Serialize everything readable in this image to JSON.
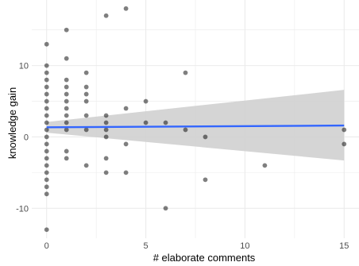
{
  "chart_data": {
    "type": "scatter",
    "xlabel": "# elaborate comments",
    "ylabel": "knowledge gain",
    "xlim": [
      -0.75,
      15.75
    ],
    "ylim": [
      -14.2,
      19.2
    ],
    "x_ticks": [
      0,
      5,
      10,
      15
    ],
    "y_ticks": [
      -10,
      0,
      10
    ],
    "grid": true,
    "legend": "none",
    "colors": {
      "points": "#000000",
      "fit_line": "#3366ff",
      "confidence_band": "#d0d0d0",
      "grid": "#ebebeb",
      "background": "#ffffff"
    },
    "points": [
      {
        "x": 0,
        "y": 13
      },
      {
        "x": 0,
        "y": 10
      },
      {
        "x": 0,
        "y": 9
      },
      {
        "x": 0,
        "y": 8
      },
      {
        "x": 0,
        "y": 7
      },
      {
        "x": 0,
        "y": 6
      },
      {
        "x": 0,
        "y": 5
      },
      {
        "x": 0,
        "y": 4
      },
      {
        "x": 0,
        "y": 3
      },
      {
        "x": 0,
        "y": 2
      },
      {
        "x": 0,
        "y": 1
      },
      {
        "x": 0,
        "y": 0
      },
      {
        "x": 0,
        "y": -1
      },
      {
        "x": 0,
        "y": -2
      },
      {
        "x": 0,
        "y": -3
      },
      {
        "x": 0,
        "y": -4
      },
      {
        "x": 0,
        "y": -5
      },
      {
        "x": 0,
        "y": -6
      },
      {
        "x": 0,
        "y": -7
      },
      {
        "x": 0,
        "y": -8
      },
      {
        "x": 0,
        "y": -13
      },
      {
        "x": 1,
        "y": 15
      },
      {
        "x": 1,
        "y": 11
      },
      {
        "x": 1,
        "y": 8
      },
      {
        "x": 1,
        "y": 7
      },
      {
        "x": 1,
        "y": 6
      },
      {
        "x": 1,
        "y": 5
      },
      {
        "x": 1,
        "y": 4
      },
      {
        "x": 1,
        "y": 3
      },
      {
        "x": 1,
        "y": 2
      },
      {
        "x": 1,
        "y": 1
      },
      {
        "x": 1,
        "y": -2
      },
      {
        "x": 1,
        "y": -3
      },
      {
        "x": 2,
        "y": 9
      },
      {
        "x": 2,
        "y": 7
      },
      {
        "x": 2,
        "y": 6
      },
      {
        "x": 2,
        "y": 5
      },
      {
        "x": 2,
        "y": 3
      },
      {
        "x": 2,
        "y": 1
      },
      {
        "x": 2,
        "y": -4
      },
      {
        "x": 3,
        "y": 17
      },
      {
        "x": 3,
        "y": 3
      },
      {
        "x": 3,
        "y": 2
      },
      {
        "x": 3,
        "y": 1
      },
      {
        "x": 3,
        "y": 0
      },
      {
        "x": 3,
        "y": -3
      },
      {
        "x": 3,
        "y": -5
      },
      {
        "x": 4,
        "y": 18
      },
      {
        "x": 4,
        "y": 4
      },
      {
        "x": 4,
        "y": -1
      },
      {
        "x": 4,
        "y": -5
      },
      {
        "x": 5,
        "y": 5
      },
      {
        "x": 5,
        "y": 2
      },
      {
        "x": 6,
        "y": 2
      },
      {
        "x": 6,
        "y": -10
      },
      {
        "x": 7,
        "y": 9
      },
      {
        "x": 7,
        "y": 1
      },
      {
        "x": 8,
        "y": 0
      },
      {
        "x": 8,
        "y": -6
      },
      {
        "x": 11,
        "y": -4
      },
      {
        "x": 15,
        "y": 1
      },
      {
        "x": 15,
        "y": -1
      }
    ],
    "fit": {
      "x": [
        0,
        15
      ],
      "y": [
        1.35,
        1.6
      ],
      "band_lower": [
        0.6,
        -3.3
      ],
      "band_upper": [
        2.1,
        6.6
      ]
    }
  }
}
